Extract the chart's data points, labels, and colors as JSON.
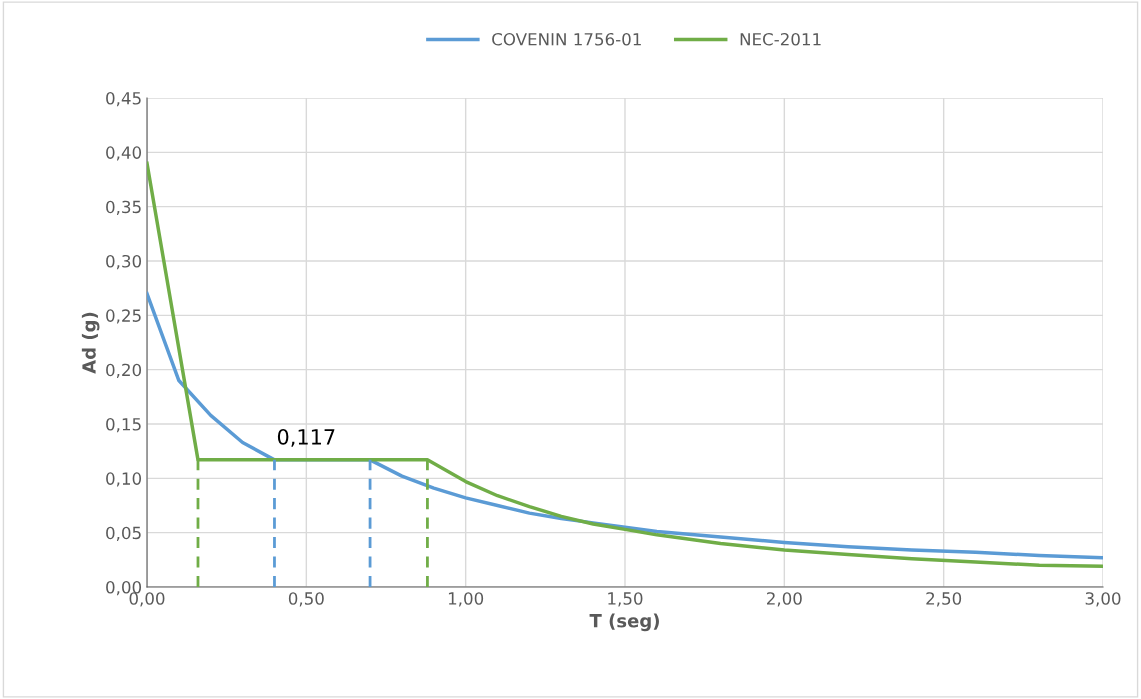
{
  "chart_data": {
    "type": "line",
    "xlabel": "T (seg)",
    "ylabel": "Ad (g)",
    "xlim": [
      0,
      3
    ],
    "xticks": [
      {
        "value": 0,
        "label": "0,00"
      },
      {
        "value": 0.5,
        "label": "0,50"
      },
      {
        "value": 1,
        "label": "1,00"
      },
      {
        "value": 1.5,
        "label": "1,50"
      },
      {
        "value": 2,
        "label": "2,00"
      },
      {
        "value": 2.5,
        "label": "2,50"
      },
      {
        "value": 3,
        "label": "3,00"
      }
    ],
    "ylim": [
      0,
      0.45
    ],
    "yticks": [
      {
        "value": 0,
        "label": "0,00"
      },
      {
        "value": 0.05,
        "label": "0,05"
      },
      {
        "value": 0.1,
        "label": "0,10"
      },
      {
        "value": 0.15,
        "label": "0,15"
      },
      {
        "value": 0.2,
        "label": "0,20"
      },
      {
        "value": 0.25,
        "label": "0,25"
      },
      {
        "value": 0.3,
        "label": "0,30"
      },
      {
        "value": 0.35,
        "label": "0,35"
      },
      {
        "value": 0.4,
        "label": "0,40"
      },
      {
        "value": 0.45,
        "label": "0,45"
      }
    ],
    "grid": true,
    "legend": "top",
    "annotations": [
      {
        "text": "0,117",
        "x": 0.5,
        "y": 0.117
      }
    ],
    "series": [
      {
        "name": "COVENIN 1756-01",
        "color": "#5b9bd5",
        "x": [
          0,
          0.1,
          0.2,
          0.3,
          0.4,
          0.7,
          0.8,
          0.9,
          1.0,
          1.1,
          1.2,
          1.3,
          1.4,
          1.5,
          1.6,
          1.8,
          2.0,
          2.2,
          2.4,
          2.6,
          2.8,
          3.0
        ],
        "values": [
          0.27,
          0.19,
          0.158,
          0.133,
          0.117,
          0.117,
          0.102,
          0.091,
          0.082,
          0.075,
          0.068,
          0.063,
          0.059,
          0.055,
          0.051,
          0.046,
          0.041,
          0.037,
          0.034,
          0.032,
          0.029,
          0.027
        ]
      },
      {
        "name": "NEC-2011",
        "color": "#70ad47",
        "x": [
          0,
          0.16,
          0.88,
          1.0,
          1.1,
          1.2,
          1.3,
          1.4,
          1.5,
          1.6,
          1.8,
          2.0,
          2.2,
          2.4,
          2.6,
          2.8,
          3.0
        ],
        "values": [
          0.39,
          0.117,
          0.117,
          0.097,
          0.084,
          0.074,
          0.065,
          0.058,
          0.053,
          0.048,
          0.04,
          0.034,
          0.03,
          0.026,
          0.023,
          0.02,
          0.019
        ]
      },
      {
        "color": "#70ad47",
        "line_style": "dashed",
        "x": [
          0.16,
          0.16
        ],
        "values": [
          0,
          0.117
        ]
      },
      {
        "color": "#5b9bd5",
        "line_style": "dashed",
        "x": [
          0.4,
          0.4
        ],
        "values": [
          0,
          0.117
        ]
      },
      {
        "color": "#5b9bd5",
        "line_style": "dashed",
        "x": [
          0.7,
          0.7
        ],
        "values": [
          0,
          0.117
        ]
      },
      {
        "color": "#70ad47",
        "line_style": "dashed",
        "x": [
          0.88,
          0.88
        ],
        "values": [
          0,
          0.117
        ]
      }
    ]
  }
}
